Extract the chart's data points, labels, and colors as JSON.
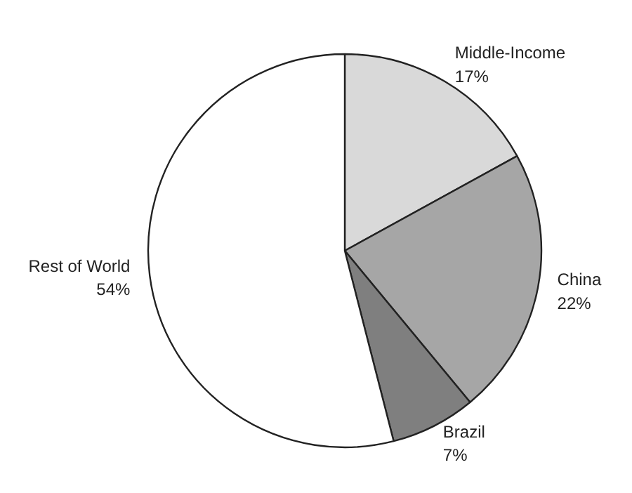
{
  "chart_data": {
    "type": "pie",
    "categories": [
      "Middle-Income",
      "China",
      "Brazil",
      "Rest of World"
    ],
    "values": [
      17,
      22,
      7,
      54
    ],
    "colors": [
      "#d9d9d9",
      "#a6a6a6",
      "#7f7f7f",
      "#ffffff"
    ],
    "value_labels": [
      "17%",
      "22%",
      "7%",
      "54%"
    ]
  }
}
